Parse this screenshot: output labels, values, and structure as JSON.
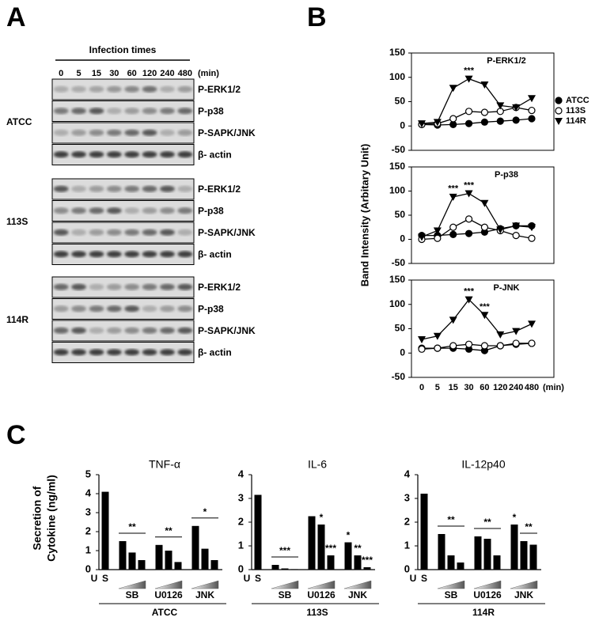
{
  "panels": [
    "A",
    "B",
    "C"
  ],
  "blot": {
    "title": "Infection times",
    "times": [
      "0",
      "5",
      "15",
      "30",
      "60",
      "120",
      "240",
      "480"
    ],
    "unit": "(min)",
    "groups": [
      {
        "name": "ATCC",
        "rows": [
          "P-ERK1/2",
          "P-p38",
          "P-SAPK/JNK",
          "β- actin"
        ]
      },
      {
        "name": "113S",
        "rows": [
          "P-ERK1/2",
          "P-p38",
          "P-SAPK/JNK",
          "β- actin"
        ]
      },
      {
        "name": "114R",
        "rows": [
          "P-ERK1/2",
          "P-p38",
          "P-SAPK/JNK",
          "β- actin"
        ]
      }
    ]
  },
  "chart_data": [
    {
      "type": "line",
      "title": "P-ERK1/2",
      "ylabel": "Band Intensity (Arbitary Unit)",
      "categories": [
        "0",
        "5",
        "15",
        "30",
        "60",
        "120",
        "240",
        "480"
      ],
      "ylim": [
        -50,
        150
      ],
      "yticks": [
        -50,
        0,
        50,
        100,
        150
      ],
      "legend": "right",
      "series": [
        {
          "name": "ATCC",
          "marker": "circle",
          "color": "#000000",
          "values": [
            3,
            2,
            3,
            5,
            8,
            10,
            12,
            15
          ]
        },
        {
          "name": "113S",
          "marker": "open-circle",
          "color": "#000000",
          "values": [
            3,
            5,
            15,
            30,
            28,
            30,
            38,
            32
          ]
        },
        {
          "name": "114R",
          "marker": "triangle-down",
          "color": "#000000",
          "values": [
            5,
            8,
            78,
            97,
            85,
            42,
            38,
            57
          ],
          "value_annotations": [
            null,
            null,
            null,
            "***",
            null,
            null,
            null,
            null
          ]
        }
      ]
    },
    {
      "type": "line",
      "title": "P-p38",
      "categories": [
        "0",
        "5",
        "15",
        "30",
        "60",
        "120",
        "240",
        "480"
      ],
      "ylim": [
        -50,
        150
      ],
      "yticks": [
        -50,
        0,
        50,
        100,
        150
      ],
      "series": [
        {
          "name": "ATCC",
          "marker": "circle",
          "color": "#000000",
          "values": [
            8,
            8,
            10,
            12,
            15,
            22,
            28,
            28
          ]
        },
        {
          "name": "113S",
          "marker": "open-circle",
          "color": "#000000",
          "values": [
            0,
            2,
            25,
            42,
            25,
            18,
            8,
            2
          ]
        },
        {
          "name": "114R",
          "marker": "triangle-down",
          "color": "#000000",
          "values": [
            5,
            18,
            88,
            95,
            75,
            20,
            28,
            25
          ],
          "value_annotations": [
            null,
            null,
            "***",
            "***",
            null,
            null,
            null,
            null
          ]
        }
      ]
    },
    {
      "type": "line",
      "title": "P-JNK",
      "x_unit": "(min)",
      "categories": [
        "0",
        "5",
        "15",
        "30",
        "60",
        "120",
        "240",
        "480"
      ],
      "ylim": [
        -50,
        150
      ],
      "yticks": [
        -50,
        0,
        50,
        100,
        150
      ],
      "series": [
        {
          "name": "ATCC",
          "marker": "circle",
          "color": "#000000",
          "values": [
            10,
            10,
            10,
            8,
            5,
            15,
            18,
            20
          ]
        },
        {
          "name": "113S",
          "marker": "open-circle",
          "color": "#000000",
          "values": [
            8,
            10,
            15,
            18,
            15,
            15,
            20,
            20
          ]
        },
        {
          "name": "114R",
          "marker": "triangle-down",
          "color": "#000000",
          "values": [
            28,
            35,
            68,
            110,
            78,
            38,
            45,
            60
          ],
          "value_annotations": [
            null,
            null,
            null,
            "***",
            "***",
            null,
            null,
            null
          ]
        }
      ]
    },
    {
      "type": "bar",
      "title": "TNF-α",
      "ylabel": [
        "Secretion of",
        "Cytokine (ng/ml)"
      ],
      "condition": "ATCC",
      "categories": [
        "U",
        "S",
        null,
        null,
        null,
        null,
        null,
        null,
        null,
        null,
        null
      ],
      "groups": [
        "SB",
        "U0126",
        "JNK"
      ],
      "color": "#000000",
      "values": [
        0,
        4.1,
        1.5,
        0.9,
        0.5,
        1.3,
        1.0,
        0.4,
        2.3,
        1.1,
        0.5
      ],
      "group_annotations": [
        "**",
        "**",
        "*"
      ],
      "ylim": [
        0,
        5
      ],
      "yticks": [
        0,
        1,
        2,
        3,
        4,
        5
      ]
    },
    {
      "type": "bar",
      "title": "IL-6",
      "condition": "113S",
      "categories": [
        "U",
        "S",
        null,
        null,
        null,
        null,
        null,
        null,
        null,
        null,
        null
      ],
      "groups": [
        "SB",
        "U0126",
        "JNK"
      ],
      "color": "#000000",
      "values": [
        0,
        3.15,
        0.2,
        0.05,
        0.02,
        2.25,
        1.9,
        0.6,
        1.15,
        0.6,
        0.1
      ],
      "group_annotations": [
        "***",
        null,
        null
      ],
      "value_annotations": [
        null,
        null,
        null,
        null,
        null,
        null,
        "*",
        "***",
        "*",
        "**",
        "***"
      ],
      "ylim": [
        0,
        4
      ],
      "yticks": [
        0,
        1,
        2,
        3,
        4
      ]
    },
    {
      "type": "bar",
      "title": "IL-12p40",
      "condition": "114R",
      "categories": [
        "U",
        "S",
        null,
        null,
        null,
        null,
        null,
        null,
        null,
        null,
        null
      ],
      "groups": [
        "SB",
        "U0126",
        "JNK"
      ],
      "color": "#000000",
      "values": [
        0,
        3.2,
        1.5,
        0.6,
        0.3,
        1.4,
        1.3,
        0.6,
        1.9,
        1.2,
        1.05
      ],
      "group_annotations": [
        "**",
        "**",
        "**"
      ],
      "value_annotations": [
        null,
        null,
        null,
        null,
        null,
        null,
        null,
        null,
        "*",
        null,
        null
      ],
      "ylim": [
        0,
        4
      ],
      "yticks": [
        0,
        1,
        2,
        3,
        4
      ]
    }
  ]
}
